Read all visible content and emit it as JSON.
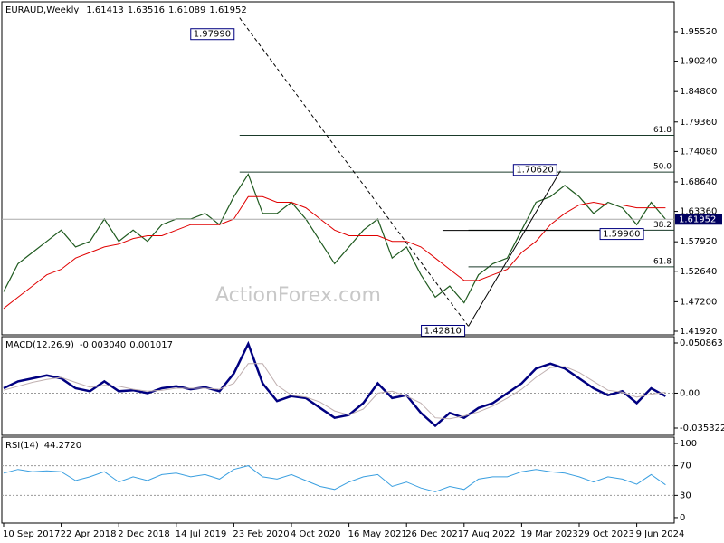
{
  "chart_data": [
    {
      "type": "line",
      "title": "EURAUD,Weekly",
      "ohlc": [
        1.61413,
        1.63516,
        1.61089,
        1.61952
      ],
      "watermark": "ActionForex.com",
      "categories": [
        "10 Sep 2017",
        null,
        null,
        null,
        "22 Apr 2018",
        null,
        null,
        null,
        "2 Dec 2018",
        null,
        null,
        null,
        "14 Jul 2019",
        null,
        null,
        null,
        "23 Feb 2020",
        null,
        null,
        null,
        "4 Oct 2020",
        null,
        null,
        null,
        "16 May 2021",
        null,
        null,
        null,
        "26 Dec 2021",
        null,
        null,
        null,
        "7 Aug 2022",
        null,
        null,
        null,
        "19 Mar 2023",
        null,
        null,
        null,
        "29 Oct 2023",
        null,
        null,
        null,
        "9 Jun 2024",
        null,
        null
      ],
      "series": [
        {
          "color": "#1f5a1f",
          "values": [
            1.49,
            1.54,
            1.56,
            1.58,
            1.6,
            1.57,
            1.58,
            1.62,
            1.58,
            1.6,
            1.58,
            1.61,
            1.62,
            1.62,
            1.63,
            1.61,
            1.66,
            1.7,
            1.63,
            1.63,
            1.65,
            1.62,
            1.58,
            1.54,
            1.57,
            1.6,
            1.62,
            1.55,
            1.57,
            1.52,
            1.48,
            1.5,
            1.47,
            1.52,
            1.54,
            1.55,
            1.6,
            1.65,
            1.66,
            1.68,
            1.66,
            1.63,
            1.65,
            1.64,
            1.61,
            1.65,
            1.61952
          ]
        },
        {
          "color": "#e00000",
          "values": [
            1.46,
            1.48,
            1.5,
            1.52,
            1.53,
            1.55,
            1.56,
            1.57,
            1.575,
            1.585,
            1.59,
            1.59,
            1.6,
            1.61,
            1.61,
            1.61,
            1.62,
            1.66,
            1.66,
            1.65,
            1.65,
            1.64,
            1.62,
            1.6,
            1.59,
            1.59,
            1.59,
            1.58,
            1.58,
            1.57,
            1.55,
            1.53,
            1.51,
            1.51,
            1.52,
            1.53,
            1.56,
            1.58,
            1.61,
            1.63,
            1.645,
            1.65,
            1.645,
            1.645,
            1.64,
            1.64,
            1.64
          ]
        }
      ],
      "ylim": [
        1.4127,
        2.0086
      ],
      "yticks": [
        {
          "value": 1.9552,
          "label": "1.95520"
        },
        {
          "value": 1.9024,
          "label": "1.90240"
        },
        {
          "value": 1.848,
          "label": "1.84800"
        },
        {
          "value": 1.7936,
          "label": "1.79360"
        },
        {
          "value": 1.7408,
          "label": "1.74080"
        },
        {
          "value": 1.6864,
          "label": "1.68640"
        },
        {
          "value": 1.6336,
          "label": "1.63360"
        },
        {
          "value": 1.5792,
          "label": "1.57920"
        },
        {
          "value": 1.5264,
          "label": "1.52640"
        },
        {
          "value": 1.472,
          "label": "1.47200"
        },
        {
          "value": 1.4192,
          "label": "1.41920"
        }
      ],
      "current": 1.61952,
      "pivots": [
        {
          "value": 1.9799,
          "label": "1.97990",
          "x": 16.4
        },
        {
          "value": 1.7062,
          "label": "1.70620",
          "x": 38.7
        },
        {
          "value": 1.5996,
          "label": "1.59960",
          "x": 41.2
        },
        {
          "value": 1.4281,
          "label": "1.42810",
          "x": 32.3
        }
      ],
      "levels": [
        {
          "value": 1.7697,
          "label": "61.8"
        },
        {
          "value": 1.704,
          "label": "50.0"
        },
        {
          "value": 1.6,
          "label": "38.2"
        },
        {
          "value": 1.5343,
          "label": "61.8"
        }
      ],
      "grid": false
    },
    {
      "type": "line",
      "title": "MACD(12,26,9)",
      "readout": [
        {
          "value": -0.00304,
          "label": "-0.003040"
        },
        0.001017
      ],
      "series": [
        {
          "color": "#000080",
          "values": [
            0.005,
            0.012,
            0.015,
            0.018,
            0.015,
            0.005,
            0.002,
            0.012,
            0.002,
            0.003,
            0.0,
            0.005,
            0.007,
            0.004,
            0.006,
            0.002,
            0.02,
            0.05,
            0.01,
            -0.008,
            -0.003,
            -0.005,
            -0.015,
            -0.025,
            -0.022,
            -0.01,
            0.01,
            -0.005,
            -0.002,
            -0.02,
            -0.033,
            -0.02,
            -0.025,
            -0.015,
            -0.01,
            0.0,
            0.01,
            0.025,
            0.03,
            0.025,
            0.015,
            0.005,
            -0.002,
            0.002,
            -0.01,
            0.005,
            -0.00304
          ]
        },
        {
          "color": "#c0b0b0",
          "values": [
            0.003,
            0.007,
            0.011,
            0.014,
            0.016,
            0.011,
            0.006,
            0.008,
            0.007,
            0.004,
            0.002,
            0.003,
            0.005,
            0.005,
            0.005,
            0.004,
            0.01,
            0.03,
            0.03,
            0.008,
            -0.002,
            -0.004,
            -0.009,
            -0.018,
            -0.022,
            -0.016,
            0.0,
            0.002,
            -0.003,
            -0.01,
            -0.025,
            -0.026,
            -0.023,
            -0.019,
            -0.013,
            -0.005,
            0.004,
            0.016,
            0.026,
            0.027,
            0.021,
            0.012,
            0.003,
            0.001,
            -0.004,
            -0.001,
            0.001017
          ]
        }
      ],
      "ylim": [
        -0.04266,
        0.05728
      ],
      "yticks": [
        0.050863,
        {
          "value": 0,
          "label": "0.00"
        },
        -0.035322
      ],
      "grid": true
    },
    {
      "type": "line",
      "title": "RSI(14)",
      "readout": [
        {
          "value": 44.272,
          "label": "44.2720"
        }
      ],
      "series": [
        {
          "color": "#3a9fe0",
          "values": [
            60,
            65,
            62,
            63,
            62,
            50,
            55,
            62,
            48,
            55,
            50,
            58,
            60,
            55,
            58,
            52,
            65,
            70,
            55,
            52,
            58,
            50,
            42,
            38,
            48,
            55,
            58,
            42,
            48,
            40,
            35,
            42,
            38,
            52,
            55,
            55,
            62,
            65,
            62,
            60,
            55,
            48,
            55,
            52,
            45,
            58,
            44.272
          ]
        }
      ],
      "ylim": [
        -7.4,
        108.6
      ],
      "yticks": [
        100,
        70,
        30,
        0
      ],
      "grid": true
    }
  ]
}
